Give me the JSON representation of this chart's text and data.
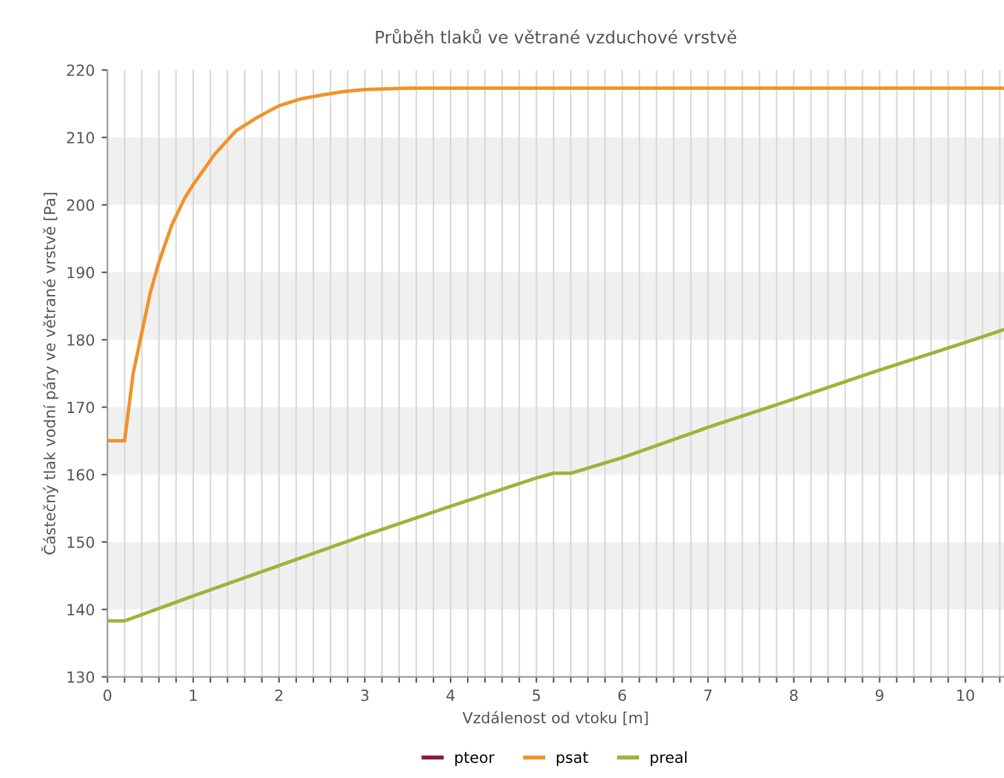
{
  "chart_data": {
    "type": "line",
    "title": "Průběh tlaků ve větrané vzduchové vrstvě",
    "xlabel": "Vzdálenost od vtoku [m]",
    "ylabel": "Částečný tlak vodní páry ve větrané vrstvě [Pa]",
    "series": [
      {
        "name": "pteor",
        "color": "#8b1a3a"
      },
      {
        "name": "psat",
        "color": "#f0932b",
        "x": [
          0,
          0.2,
          0.3,
          0.4,
          0.5,
          0.6,
          0.75,
          0.9,
          1.0,
          1.25,
          1.5,
          1.75,
          2.0,
          2.25,
          2.5,
          2.75,
          3.0,
          3.5,
          4.0,
          10.45
        ],
        "values": [
          165,
          165,
          175,
          181,
          187,
          191.5,
          197,
          201,
          203,
          207.5,
          211,
          213,
          214.7,
          215.7,
          216.3,
          216.8,
          217.1,
          217.3,
          217.3,
          217.3
        ]
      },
      {
        "name": "preal",
        "color": "#9ab53a",
        "x": [
          0,
          0.2,
          1,
          2,
          3,
          4,
          5,
          5.2,
          5.4,
          6,
          7,
          8,
          9,
          10,
          10.45
        ],
        "values": [
          138.3,
          138.3,
          142,
          146.5,
          151,
          155.3,
          159.5,
          160.2,
          160.2,
          162.5,
          167,
          171.2,
          175.5,
          179.6,
          181.5
        ]
      }
    ],
    "xlim": [
      0,
      10.45
    ],
    "ylim": [
      130,
      220
    ],
    "xticks": [
      0,
      {
        "value": 0.2,
        "label": null
      },
      {
        "value": 0.4,
        "label": null
      },
      {
        "value": 0.6,
        "label": null
      },
      {
        "value": 0.8,
        "label": null
      },
      1,
      {
        "value": 1.2,
        "label": null
      },
      {
        "value": 1.4,
        "label": null
      },
      {
        "value": 1.6,
        "label": null
      },
      {
        "value": 1.8,
        "label": null
      },
      2,
      {
        "value": 2.2,
        "label": null
      },
      {
        "value": 2.4,
        "label": null
      },
      {
        "value": 2.6,
        "label": null
      },
      {
        "value": 2.8,
        "label": null
      },
      3,
      {
        "value": 3.2,
        "label": null
      },
      {
        "value": 3.4,
        "label": null
      },
      {
        "value": 3.6,
        "label": null
      },
      {
        "value": 3.8,
        "label": null
      },
      4,
      {
        "value": 4.2,
        "label": null
      },
      {
        "value": 4.4,
        "label": null
      },
      {
        "value": 4.6,
        "label": null
      },
      {
        "value": 4.8,
        "label": null
      },
      5,
      {
        "value": 5.2,
        "label": null
      },
      {
        "value": 5.4,
        "label": null
      },
      {
        "value": 5.6,
        "label": null
      },
      {
        "value": 5.8,
        "label": null
      },
      6,
      {
        "value": 6.2,
        "label": null
      },
      {
        "value": 6.4,
        "label": null
      },
      {
        "value": 6.6,
        "label": null
      },
      {
        "value": 6.8,
        "label": null
      },
      7,
      {
        "value": 7.2,
        "label": null
      },
      {
        "value": 7.4,
        "label": null
      },
      {
        "value": 7.6,
        "label": null
      },
      {
        "value": 7.8,
        "label": null
      },
      8,
      {
        "value": 8.2,
        "label": null
      },
      {
        "value": 8.4,
        "label": null
      },
      {
        "value": 8.6,
        "label": null
      },
      {
        "value": 8.8,
        "label": null
      },
      9,
      {
        "value": 9.2,
        "label": null
      },
      {
        "value": 9.4,
        "label": null
      },
      {
        "value": 9.6,
        "label": null
      },
      {
        "value": 9.8,
        "label": null
      },
      10,
      {
        "value": 10.2,
        "label": null
      },
      {
        "value": 10.4,
        "label": null
      }
    ],
    "yticks": [
      130,
      140,
      150,
      160,
      170,
      180,
      190,
      200,
      210,
      220
    ],
    "bands": [
      {
        "axis": "y",
        "from": 140,
        "to": 150,
        "color": "#f0f0f0"
      },
      {
        "axis": "y",
        "from": 160,
        "to": 170,
        "color": "#f0f0f0"
      },
      {
        "axis": "y",
        "from": 180,
        "to": 190,
        "color": "#f0f0f0"
      },
      {
        "axis": "y",
        "from": 200,
        "to": 210,
        "color": "#f0f0f0"
      }
    ],
    "grid": "x",
    "legend": "bottom",
    "marker": "none",
    "line_style": "solid"
  }
}
